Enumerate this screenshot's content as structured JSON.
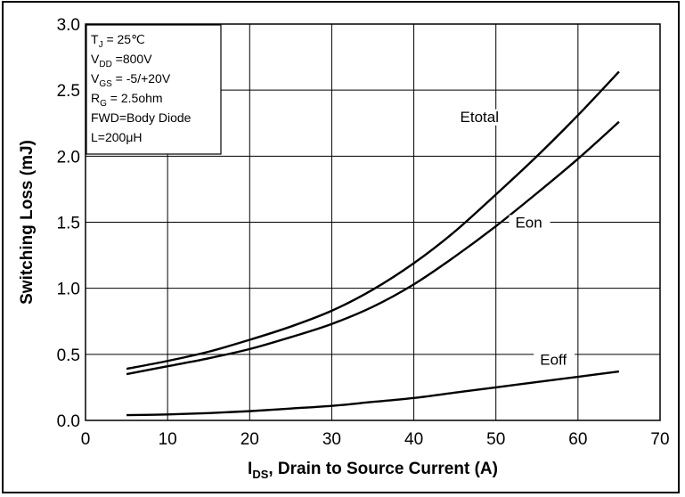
{
  "chart_data": {
    "type": "line",
    "title": "",
    "xlabel": {
      "main": "I",
      "sub": "DS",
      "rest": ", Drain to Source Current (A)"
    },
    "ylabel": "Switching Loss (mJ)",
    "xlim": [
      0,
      70
    ],
    "ylim": [
      0,
      3.0
    ],
    "x_ticks": [
      "0",
      "10",
      "20",
      "30",
      "40",
      "50",
      "60",
      "70"
    ],
    "y_ticks": [
      "0.0",
      "0.5",
      "1.0",
      "1.5",
      "2.0",
      "2.5",
      "3.0"
    ],
    "grid": true,
    "conditions": [
      {
        "main": "T",
        "sub": "J",
        "rest": " = 25℃"
      },
      {
        "main": "V",
        "sub": "DD",
        "rest": " =800V"
      },
      {
        "main": "V",
        "sub": "GS",
        "rest": " = -5/+20V"
      },
      {
        "main": "R",
        "sub": "G",
        "rest": " = 2.5ohm"
      },
      {
        "main": "FWD=Body Diode",
        "sub": "",
        "rest": ""
      },
      {
        "main": "L=200μH",
        "sub": "",
        "rest": ""
      }
    ],
    "series": [
      {
        "name": "Etotal",
        "x": [
          5,
          10,
          15,
          20,
          25,
          30,
          35,
          40,
          45,
          50,
          55,
          60,
          65
        ],
        "y": [
          0.39,
          0.45,
          0.52,
          0.61,
          0.71,
          0.83,
          0.99,
          1.19,
          1.43,
          1.71,
          2.0,
          2.31,
          2.64
        ]
      },
      {
        "name": "Eon",
        "x": [
          5,
          10,
          15,
          20,
          25,
          30,
          35,
          40,
          45,
          50,
          55,
          60,
          65
        ],
        "y": [
          0.35,
          0.41,
          0.47,
          0.54,
          0.63,
          0.73,
          0.86,
          1.03,
          1.24,
          1.47,
          1.72,
          1.98,
          2.26
        ]
      },
      {
        "name": "Eoff",
        "x": [
          5,
          10,
          15,
          20,
          25,
          30,
          35,
          40,
          45,
          50,
          55,
          60,
          65
        ],
        "y": [
          0.04,
          0.045,
          0.055,
          0.07,
          0.09,
          0.11,
          0.14,
          0.17,
          0.21,
          0.25,
          0.29,
          0.33,
          0.37
        ]
      }
    ]
  }
}
